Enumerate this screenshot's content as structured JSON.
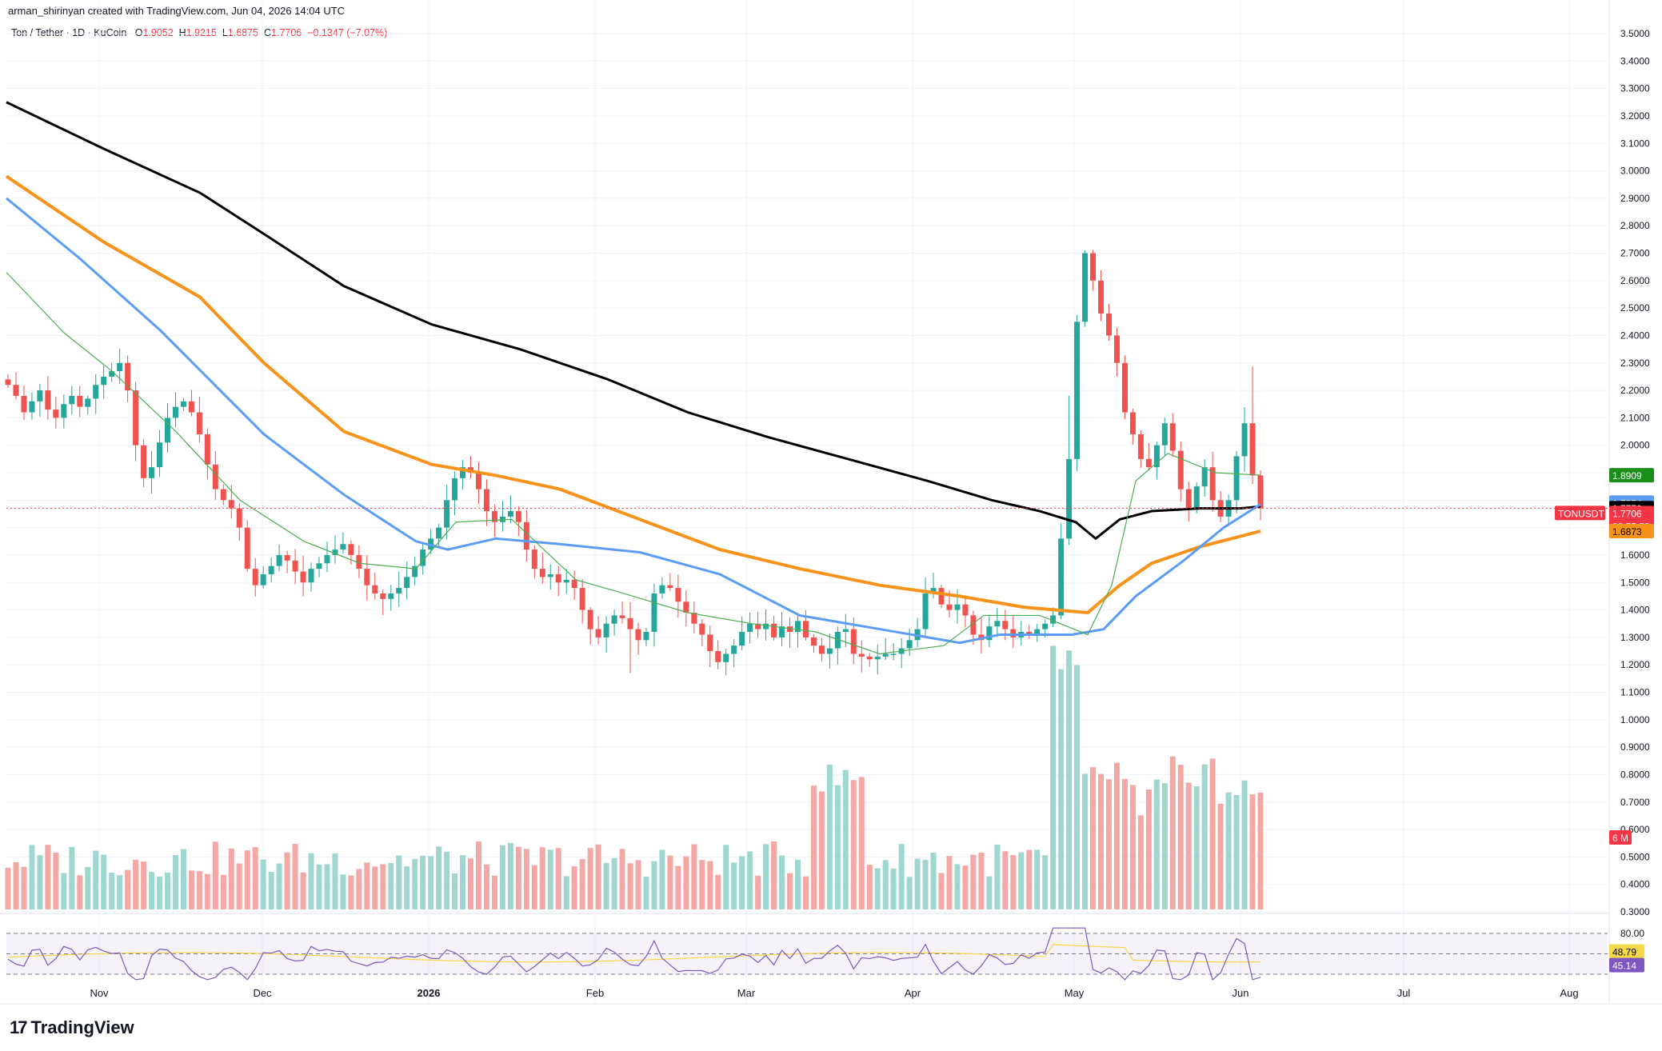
{
  "header": {
    "attribution": "arman_shirinyan created with TradingView.com, Jun 04, 2026 14:04 UTC",
    "symbol_line": "Ton / Tether · 1D · KuCoin",
    "open_label": "O",
    "open": "1.9052",
    "high_label": "H",
    "high": "1.9215",
    "low_label": "L",
    "low": "1.6875",
    "close_label": "C",
    "close": "1.7706",
    "change": "−0.1347 (−7.07%)"
  },
  "brand": {
    "name": "TradingView",
    "logo_glyph": "17"
  },
  "price_tags": [
    {
      "label": "1.8909",
      "value": 1.8909,
      "color": "#1b8e1b",
      "text_color": "#ffffff"
    },
    {
      "label": "1.7854",
      "value": 1.7854,
      "color": "#5b9cf6",
      "text_color": "#ffffff"
    },
    {
      "label": "1.7770",
      "value": 1.777,
      "color": "#000000",
      "text_color": "#ffffff"
    },
    {
      "label": "1.7706",
      "value": 1.7706,
      "color": "#f23645",
      "text_color": "#ffffff",
      "countdown": "09:55:59",
      "symbol": "TONUSDT"
    },
    {
      "label": "1.6873",
      "value": 1.6873,
      "color": "#f7931a",
      "text_color": "#000000"
    }
  ],
  "volume_tag": {
    "label": "6 M",
    "color": "#f23645"
  },
  "rsi_tags": [
    {
      "label": "48.79",
      "color": "#f5d94a",
      "text_color": "#000000"
    },
    {
      "label": "45.14",
      "color": "#7e57c2",
      "text_color": "#ffffff"
    }
  ],
  "rsi_levels": {
    "upper_label": "80.00",
    "upper": 80,
    "lower": 20,
    "mid": 50
  },
  "colors": {
    "up": "#26a69a",
    "down": "#ef5350",
    "vol_up": "#9fd6cf",
    "vol_down": "#f4a8a6",
    "sma200": "#000000",
    "sma100": "#f7931a",
    "sma50": "#5b9cf6",
    "sma20": "#4caf50",
    "rsi": "#7e57c2",
    "rsi_ma": "#f5d94a"
  },
  "chart_data": {
    "type": "candlestick",
    "title": "",
    "x_ticks": [
      "Nov",
      "Dec",
      "2026",
      "Feb",
      "Mar",
      "Apr",
      "May",
      "Jun",
      "Jul",
      "Aug"
    ],
    "y_ticks": [
      "3.5000",
      "3.4000",
      "3.3000",
      "3.2000",
      "3.1000",
      "3.0000",
      "2.9000",
      "2.8000",
      "2.7000",
      "2.6000",
      "2.5000",
      "2.4000",
      "2.3000",
      "2.2000",
      "2.1000",
      "2.0000",
      "1.9000",
      "1.8000",
      "1.7000",
      "1.6000",
      "1.5000",
      "1.4000",
      "1.3000",
      "1.2000",
      "1.1000",
      "1.0000",
      "0.9000",
      "0.8000",
      "0.7000",
      "0.6000",
      "0.5000",
      "0.4000",
      "0.3000"
    ],
    "ylim": [
      0.3,
      3.5
    ],
    "candles_close_path": [
      2.22,
      2.18,
      2.12,
      2.16,
      2.2,
      2.13,
      2.1,
      2.15,
      2.18,
      2.14,
      2.17,
      2.22,
      2.25,
      2.27,
      2.3,
      2.2,
      2.0,
      1.88,
      1.92,
      2.01,
      2.1,
      2.14,
      2.16,
      2.12,
      2.04,
      1.93,
      1.84,
      1.8,
      1.77,
      1.7,
      1.55,
      1.49,
      1.53,
      1.56,
      1.6,
      1.58,
      1.54,
      1.5,
      1.55,
      1.57,
      1.6,
      1.62,
      1.64,
      1.6,
      1.55,
      1.49,
      1.46,
      1.44,
      1.46,
      1.48,
      1.52,
      1.56,
      1.62,
      1.66,
      1.7,
      1.8,
      1.88,
      1.92,
      1.9,
      1.84,
      1.76,
      1.72,
      1.74,
      1.76,
      1.72,
      1.62,
      1.55,
      1.52,
      1.53,
      1.5,
      1.51,
      1.48,
      1.4,
      1.33,
      1.3,
      1.35,
      1.38,
      1.37,
      1.33,
      1.29,
      1.32,
      1.46,
      1.49,
      1.48,
      1.43,
      1.39,
      1.35,
      1.31,
      1.25,
      1.21,
      1.24,
      1.27,
      1.32,
      1.35,
      1.33,
      1.35,
      1.3,
      1.34,
      1.32,
      1.36,
      1.3,
      1.27,
      1.24,
      1.26,
      1.32,
      1.33,
      1.24,
      1.23,
      1.22,
      1.23,
      1.24,
      1.24,
      1.26,
      1.29,
      1.33,
      1.46,
      1.48,
      1.42,
      1.4,
      1.42,
      1.38,
      1.31,
      1.29,
      1.34,
      1.36,
      1.33,
      1.3,
      1.32,
      1.31,
      1.33,
      1.35,
      1.38,
      1.66,
      1.95,
      2.45,
      2.7,
      2.6,
      2.48,
      2.4,
      2.3,
      2.12,
      2.04,
      1.95,
      1.92,
      2.0,
      2.08,
      1.98,
      1.84,
      1.77,
      1.85,
      1.92,
      1.8,
      1.74,
      1.8,
      1.96,
      2.08,
      1.89,
      1.77
    ],
    "series": [
      {
        "name": "",
        "type": "sma"
      }
    ],
    "grid": true,
    "panes": [
      "price",
      "volume",
      "rsi"
    ]
  }
}
